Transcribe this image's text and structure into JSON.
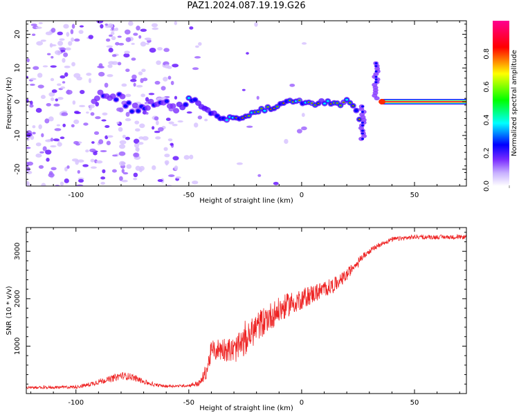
{
  "title": "PAZ1.2024.087.19.19.G26",
  "chart_data": [
    {
      "type": "heatmap",
      "title": "PAZ1.2024.087.19.19.G26",
      "xlabel": "Height of straight line (km)",
      "ylabel": "Frequency (Hz)",
      "xlim": [
        -122,
        73
      ],
      "ylim": [
        -25,
        24
      ],
      "x_ticks": [
        -100,
        -50,
        0,
        50
      ],
      "y_ticks": [
        -20,
        -10,
        0,
        10,
        20
      ],
      "colorbar": {
        "label": "Normalized spectral amplitude",
        "range": [
          0,
          1
        ],
        "ticks": [
          0.0,
          0.2,
          0.4,
          0.6,
          0.8
        ],
        "colormap": [
          "#ffffff",
          "#a066ff",
          "#5000ff",
          "#0000ff",
          "#00ffff",
          "#00ff00",
          "#ffff00",
          "#ff0000",
          "#ff0090"
        ]
      },
      "ridge": [
        {
          "x": -90,
          "y": 3.5
        },
        {
          "x": -85,
          "y": 2
        },
        {
          "x": -80,
          "y": 1
        },
        {
          "x": -75,
          "y": -2
        },
        {
          "x": -70,
          "y": -2
        },
        {
          "x": -65,
          "y": 0
        },
        {
          "x": -60,
          "y": -1
        },
        {
          "x": -55,
          "y": -2
        },
        {
          "x": -50,
          "y": 1
        },
        {
          "x": -47,
          "y": 0
        },
        {
          "x": -45,
          "y": -1
        },
        {
          "x": -42,
          "y": -2
        },
        {
          "x": -40,
          "y": -3
        },
        {
          "x": -35,
          "y": -5
        },
        {
          "x": -30,
          "y": -5
        },
        {
          "x": -25,
          "y": -4.5
        },
        {
          "x": -20,
          "y": -3
        },
        {
          "x": -15,
          "y": -2
        },
        {
          "x": -10,
          "y": -1
        },
        {
          "x": -5,
          "y": 0
        },
        {
          "x": 0,
          "y": 0
        },
        {
          "x": 5,
          "y": -1
        },
        {
          "x": 10,
          "y": 0
        },
        {
          "x": 15,
          "y": -1
        },
        {
          "x": 20,
          "y": 0
        },
        {
          "x": 24,
          "y": -2
        },
        {
          "x": 27,
          "y": -8
        },
        {
          "x": 33,
          "y": 6
        },
        {
          "x": 36,
          "y": 0
        },
        {
          "x": 40,
          "y": 0
        },
        {
          "x": 50,
          "y": 0
        },
        {
          "x": 60,
          "y": 0
        },
        {
          "x": 73,
          "y": 0
        }
      ]
    },
    {
      "type": "line",
      "xlabel": "Height of straight line (km)",
      "ylabel": "SNR (10 * v/v)",
      "xlim": [
        -122,
        73
      ],
      "ylim": [
        0,
        3500
      ],
      "x_ticks": [
        -100,
        -50,
        0,
        50
      ],
      "y_ticks": [
        1000,
        2000,
        3000
      ],
      "color": "#ee2222",
      "series": [
        {
          "x": [
            -122,
            -110,
            -100,
            -95,
            -90,
            -85,
            -80,
            -75,
            -70,
            -65,
            -60,
            -55,
            -50,
            -45,
            -42,
            -40,
            -35,
            -30,
            -25,
            -20,
            -15,
            -10,
            -5,
            0,
            5,
            10,
            15,
            20,
            25,
            30,
            35,
            40,
            50,
            60,
            73
          ],
          "values": [
            120,
            130,
            140,
            180,
            250,
            300,
            380,
            350,
            250,
            180,
            160,
            160,
            170,
            220,
            500,
            900,
            950,
            900,
            1100,
            1400,
            1600,
            1750,
            1900,
            2000,
            2100,
            2200,
            2300,
            2500,
            2800,
            3000,
            3150,
            3250,
            3300,
            3300,
            3300
          ],
          "noise": [
            60,
            60,
            70,
            90,
            120,
            140,
            160,
            150,
            110,
            70,
            60,
            50,
            60,
            150,
            350,
            450,
            500,
            550,
            600,
            650,
            600,
            550,
            500,
            450,
            400,
            350,
            320,
            250,
            150,
            120,
            100,
            100,
            90,
            90,
            90
          ]
        }
      ]
    }
  ]
}
